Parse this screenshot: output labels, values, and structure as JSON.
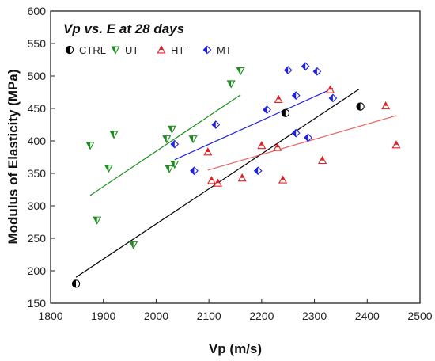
{
  "chart_data": {
    "type": "scatter",
    "title": "Vp vs. E at 28 days",
    "xlabel": "Vp (m/s)",
    "ylabel": "Modulus of Elasticity (MPa)",
    "xlim": [
      1800,
      2500
    ],
    "ylim": [
      150,
      600
    ],
    "xticks": [
      "1800",
      "1900",
      "2000",
      "2100",
      "2200",
      "2300",
      "2400",
      "2500"
    ],
    "yticks": [
      "150",
      "200",
      "250",
      "300",
      "350",
      "400",
      "450",
      "500",
      "550",
      "600"
    ],
    "legend_position": "top-left",
    "grid": false,
    "series": [
      {
        "name": "CTRL",
        "color": "#000000",
        "marker": "half-circle",
        "points": [
          [
            1848,
            180
          ],
          [
            2245,
            443
          ],
          [
            2387,
            453
          ]
        ],
        "fit": [
          [
            1848,
            190
          ],
          [
            2385,
            480
          ]
        ]
      },
      {
        "name": "UT",
        "color": "#1e8c1e",
        "marker": "half-triangle-down",
        "points": [
          [
            1875,
            393
          ],
          [
            1888,
            278
          ],
          [
            1910,
            358
          ],
          [
            1920,
            410
          ],
          [
            1957,
            240
          ],
          [
            2020,
            403
          ],
          [
            2025,
            357
          ],
          [
            2030,
            418
          ],
          [
            2035,
            364
          ],
          [
            2070,
            403
          ],
          [
            2142,
            488
          ],
          [
            2160,
            508
          ]
        ],
        "fit": [
          [
            1875,
            316
          ],
          [
            2160,
            471
          ]
        ]
      },
      {
        "name": "HT",
        "color": "#e02020",
        "marker": "half-triangle-up",
        "points": [
          [
            2098,
            383
          ],
          [
            2105,
            339
          ],
          [
            2117,
            335
          ],
          [
            2163,
            343
          ],
          [
            2200,
            393
          ],
          [
            2230,
            390
          ],
          [
            2232,
            464
          ],
          [
            2240,
            340
          ],
          [
            2315,
            370
          ],
          [
            2330,
            479
          ],
          [
            2435,
            454
          ],
          [
            2455,
            394
          ]
        ],
        "fit": [
          [
            2098,
            355
          ],
          [
            2455,
            439
          ]
        ]
      },
      {
        "name": "MT",
        "color": "#2020e0",
        "marker": "half-diamond",
        "points": [
          [
            2035,
            395
          ],
          [
            2072,
            354
          ],
          [
            2113,
            425
          ],
          [
            2193,
            354
          ],
          [
            2210,
            448
          ],
          [
            2250,
            509
          ],
          [
            2265,
            470
          ],
          [
            2265,
            412
          ],
          [
            2283,
            515
          ],
          [
            2288,
            405
          ],
          [
            2305,
            507
          ],
          [
            2335,
            466
          ]
        ],
        "fit": [
          [
            2035,
            371
          ],
          [
            2335,
            481
          ]
        ]
      }
    ]
  }
}
